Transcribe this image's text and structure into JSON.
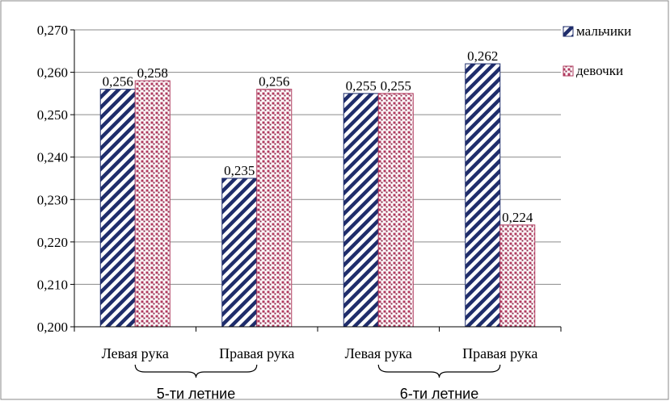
{
  "chart_data": {
    "type": "bar",
    "categories": [
      "Левая рука",
      "Правая рука",
      "Левая рука",
      "Правая рука"
    ],
    "groups": [
      {
        "label": "5-ти летние",
        "categories": [
          0,
          1
        ]
      },
      {
        "label": "6-ти летние",
        "categories": [
          2,
          3
        ]
      }
    ],
    "series": [
      {
        "name": "мальчики",
        "values": [
          0.256,
          0.235,
          0.255,
          0.262
        ],
        "labels": [
          "0,256",
          "0,235",
          "0,255",
          "0,262"
        ],
        "color": "#1f2d6b",
        "pattern": "diagonal-stripes"
      },
      {
        "name": "девочки",
        "values": [
          0.258,
          0.256,
          0.255,
          0.224
        ],
        "labels": [
          "0,258",
          "0,256",
          "0,255",
          "0,224"
        ],
        "color": "#b03a5e",
        "pattern": "dots"
      }
    ],
    "ylim": [
      0.2,
      0.27
    ],
    "yticks": [
      "0,200",
      "0,210",
      "0,220",
      "0,230",
      "0,240",
      "0,250",
      "0,260",
      "0,270"
    ],
    "grid": true,
    "legend": "right"
  }
}
